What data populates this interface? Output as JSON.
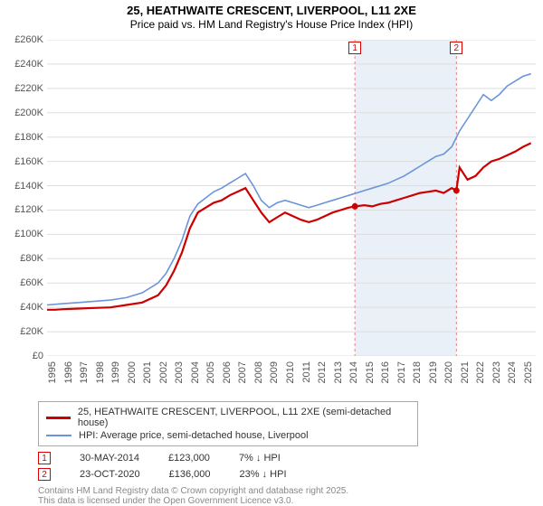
{
  "title": "25, HEATHWAITE CRESCENT, LIVERPOOL, L11 2XE",
  "subtitle": "Price paid vs. HM Land Registry's House Price Index (HPI)",
  "chart": {
    "type": "line",
    "background_color": "#ffffff",
    "grid_color": "#dddddd",
    "plot_band_color": "#eaf0f7",
    "plot_band_start_year": 2014.4,
    "plot_band_end_year": 2020.8,
    "x_years": [
      1995,
      1996,
      1997,
      1998,
      1999,
      2000,
      2001,
      2002,
      2003,
      2004,
      2005,
      2006,
      2007,
      2008,
      2009,
      2010,
      2011,
      2012,
      2013,
      2014,
      2015,
      2016,
      2017,
      2018,
      2019,
      2020,
      2021,
      2022,
      2023,
      2024,
      2025
    ],
    "ylim": [
      0,
      260000
    ],
    "ytick_step": 20000,
    "ytick_labels": [
      "£0",
      "£20K",
      "£40K",
      "£60K",
      "£80K",
      "£100K",
      "£120K",
      "£140K",
      "£160K",
      "£180K",
      "£200K",
      "£220K",
      "£240K",
      "£260K"
    ],
    "label_fontsize": 11,
    "title_fontsize": 13,
    "series": [
      {
        "name": "25, HEATHWAITE CRESCENT, LIVERPOOL, L11 2XE (semi-detached house)",
        "color": "#cc0000",
        "line_width": 2.2,
        "data": [
          [
            1995,
            38000
          ],
          [
            1995.5,
            38000
          ],
          [
            1996,
            38500
          ],
          [
            1997,
            39000
          ],
          [
            1998,
            39500
          ],
          [
            1999,
            40000
          ],
          [
            2000,
            42000
          ],
          [
            2001,
            44000
          ],
          [
            2002,
            50000
          ],
          [
            2002.5,
            58000
          ],
          [
            2003,
            70000
          ],
          [
            2003.5,
            85000
          ],
          [
            2004,
            105000
          ],
          [
            2004.5,
            118000
          ],
          [
            2005,
            122000
          ],
          [
            2005.5,
            126000
          ],
          [
            2006,
            128000
          ],
          [
            2006.5,
            132000
          ],
          [
            2007,
            135000
          ],
          [
            2007.5,
            138000
          ],
          [
            2008,
            128000
          ],
          [
            2008.5,
            118000
          ],
          [
            2009,
            110000
          ],
          [
            2009.5,
            114000
          ],
          [
            2010,
            118000
          ],
          [
            2010.5,
            115000
          ],
          [
            2011,
            112000
          ],
          [
            2011.5,
            110000
          ],
          [
            2012,
            112000
          ],
          [
            2012.5,
            115000
          ],
          [
            2013,
            118000
          ],
          [
            2013.5,
            120000
          ],
          [
            2014,
            122000
          ],
          [
            2014.4,
            123000
          ],
          [
            2015,
            124000
          ],
          [
            2015.5,
            123000
          ],
          [
            2016,
            125000
          ],
          [
            2016.5,
            126000
          ],
          [
            2017,
            128000
          ],
          [
            2017.5,
            130000
          ],
          [
            2018,
            132000
          ],
          [
            2018.5,
            134000
          ],
          [
            2019,
            135000
          ],
          [
            2019.5,
            136000
          ],
          [
            2020,
            134000
          ],
          [
            2020.5,
            138000
          ],
          [
            2020.8,
            136000
          ],
          [
            2021,
            155000
          ],
          [
            2021.5,
            145000
          ],
          [
            2022,
            148000
          ],
          [
            2022.5,
            155000
          ],
          [
            2023,
            160000
          ],
          [
            2023.5,
            162000
          ],
          [
            2024,
            165000
          ],
          [
            2024.5,
            168000
          ],
          [
            2025,
            172000
          ],
          [
            2025.5,
            175000
          ]
        ]
      },
      {
        "name": "HPI: Average price, semi-detached house, Liverpool",
        "color": "#6a95d8",
        "line_width": 1.6,
        "data": [
          [
            1995,
            42000
          ],
          [
            1996,
            43000
          ],
          [
            1997,
            44000
          ],
          [
            1998,
            45000
          ],
          [
            1999,
            46000
          ],
          [
            2000,
            48000
          ],
          [
            2001,
            52000
          ],
          [
            2002,
            60000
          ],
          [
            2002.5,
            68000
          ],
          [
            2003,
            80000
          ],
          [
            2003.5,
            95000
          ],
          [
            2004,
            115000
          ],
          [
            2004.5,
            125000
          ],
          [
            2005,
            130000
          ],
          [
            2005.5,
            135000
          ],
          [
            2006,
            138000
          ],
          [
            2006.5,
            142000
          ],
          [
            2007,
            146000
          ],
          [
            2007.5,
            150000
          ],
          [
            2008,
            140000
          ],
          [
            2008.5,
            128000
          ],
          [
            2009,
            122000
          ],
          [
            2009.5,
            126000
          ],
          [
            2010,
            128000
          ],
          [
            2010.5,
            126000
          ],
          [
            2011,
            124000
          ],
          [
            2011.5,
            122000
          ],
          [
            2012,
            124000
          ],
          [
            2012.5,
            126000
          ],
          [
            2013,
            128000
          ],
          [
            2013.5,
            130000
          ],
          [
            2014,
            132000
          ],
          [
            2014.5,
            134000
          ],
          [
            2015,
            136000
          ],
          [
            2015.5,
            138000
          ],
          [
            2016,
            140000
          ],
          [
            2016.5,
            142000
          ],
          [
            2017,
            145000
          ],
          [
            2017.5,
            148000
          ],
          [
            2018,
            152000
          ],
          [
            2018.5,
            156000
          ],
          [
            2019,
            160000
          ],
          [
            2019.5,
            164000
          ],
          [
            2020,
            166000
          ],
          [
            2020.5,
            172000
          ],
          [
            2021,
            185000
          ],
          [
            2021.5,
            195000
          ],
          [
            2022,
            205000
          ],
          [
            2022.5,
            215000
          ],
          [
            2023,
            210000
          ],
          [
            2023.5,
            215000
          ],
          [
            2024,
            222000
          ],
          [
            2024.5,
            226000
          ],
          [
            2025,
            230000
          ],
          [
            2025.5,
            232000
          ]
        ]
      }
    ],
    "event_markers": [
      {
        "n": "1",
        "year": 2014.4,
        "value": 123000
      },
      {
        "n": "2",
        "year": 2020.8,
        "value": 136000
      }
    ]
  },
  "legend": {
    "series": [
      {
        "color": "#cc0000",
        "label": "25, HEATHWAITE CRESCENT, LIVERPOOL, L11 2XE (semi-detached house)"
      },
      {
        "color": "#6a95d8",
        "label": "HPI: Average price, semi-detached house, Liverpool"
      }
    ]
  },
  "events": [
    {
      "n": "1",
      "date": "30-MAY-2014",
      "price": "£123,000",
      "diff": "7% ↓ HPI"
    },
    {
      "n": "2",
      "date": "23-OCT-2020",
      "price": "£136,000",
      "diff": "23% ↓ HPI"
    }
  ],
  "footer": {
    "line1": "Contains HM Land Registry data © Crown copyright and database right 2025.",
    "line2": "This data is licensed under the Open Government Licence v3.0."
  }
}
